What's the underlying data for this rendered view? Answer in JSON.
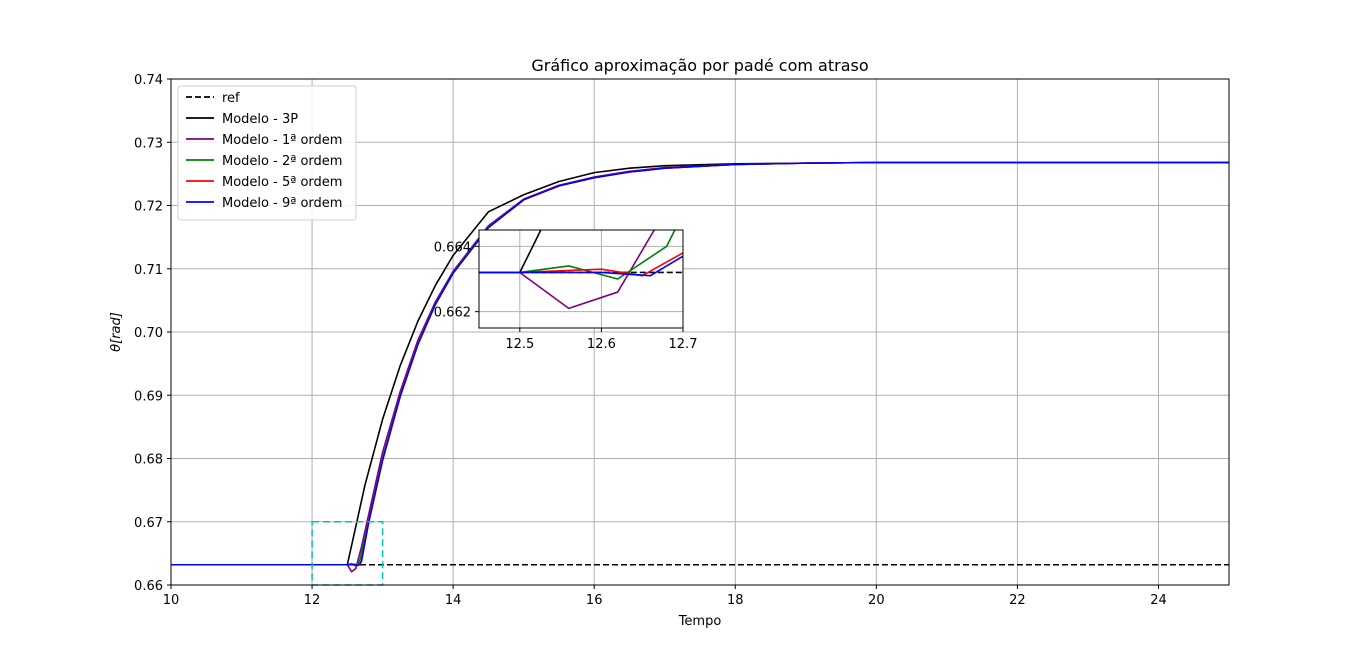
{
  "chart_data": {
    "type": "line",
    "title": "Gráfico aproximação por padé com atraso",
    "xlabel": "Tempo",
    "ylabel": "θ[rad]",
    "xlim": [
      10,
      25
    ],
    "ylim": [
      0.66,
      0.74
    ],
    "xticks": [
      "10",
      "12",
      "14",
      "16",
      "18",
      "20",
      "22",
      "24"
    ],
    "xtick_values": [
      10,
      12,
      14,
      16,
      18,
      20,
      22,
      24
    ],
    "yticks": [
      "0.66",
      "0.67",
      "0.68",
      "0.69",
      "0.70",
      "0.71",
      "0.72",
      "0.73",
      "0.74"
    ],
    "ytick_values": [
      0.66,
      0.67,
      0.68,
      0.69,
      0.7,
      0.71,
      0.72,
      0.73,
      0.74
    ],
    "grid": true,
    "legend_position": "upper-left",
    "series": [
      {
        "name": "ref",
        "color": "#000000",
        "style": "dashed",
        "x": [
          10,
          25
        ],
        "y": [
          0.6632,
          0.6632
        ]
      },
      {
        "name": "Modelo - 3P",
        "color": "#000000",
        "style": "solid",
        "x": [
          10,
          12.5,
          12.75,
          13,
          13.25,
          13.5,
          13.75,
          14,
          14.5,
          15,
          15.5,
          16,
          16.5,
          17,
          18,
          19,
          20,
          22,
          25
        ],
        "y": [
          0.6632,
          0.6632,
          0.6758,
          0.6862,
          0.6947,
          0.7017,
          0.7074,
          0.7121,
          0.719,
          0.7217,
          0.7238,
          0.7252,
          0.7259,
          0.7263,
          0.7266,
          0.7267,
          0.7268,
          0.7268,
          0.7268
        ]
      },
      {
        "name": "Modelo - 1ª ordem",
        "color": "#800080",
        "style": "solid",
        "x": [
          10,
          12.5,
          12.56,
          12.62,
          12.7,
          12.85,
          13,
          13.25,
          13.5,
          13.75,
          14,
          14.5,
          15,
          15.5,
          16,
          16.5,
          17,
          18,
          19,
          20,
          22,
          25
        ],
        "y": [
          0.6632,
          0.6632,
          0.6621,
          0.6626,
          0.666,
          0.6735,
          0.681,
          0.6906,
          0.6987,
          0.7048,
          0.7096,
          0.7168,
          0.721,
          0.7232,
          0.7245,
          0.7254,
          0.726,
          0.7265,
          0.7267,
          0.7268,
          0.7268,
          0.7268
        ]
      },
      {
        "name": "Modelo - 2ª ordem",
        "color": "#008000",
        "style": "solid",
        "x": [
          10,
          12.5,
          12.56,
          12.62,
          12.68,
          12.8,
          13,
          13.25,
          13.5,
          13.75,
          14,
          14.5,
          15,
          15.5,
          16,
          16.5,
          17,
          18,
          19,
          20,
          22,
          25
        ],
        "y": [
          0.6632,
          0.6632,
          0.6634,
          0.663,
          0.664,
          0.67,
          0.68,
          0.69,
          0.6982,
          0.7045,
          0.7094,
          0.7166,
          0.7209,
          0.7231,
          0.7244,
          0.7253,
          0.7259,
          0.7265,
          0.7267,
          0.7268,
          0.7268,
          0.7268
        ]
      },
      {
        "name": "Modelo - 5ª ordem",
        "color": "#ff0000",
        "style": "solid",
        "x": [
          10,
          12.5,
          12.6,
          12.65,
          12.7,
          12.8,
          13,
          13.25,
          13.5,
          13.75,
          14,
          14.5,
          15,
          15.5,
          16,
          16.5,
          17,
          18,
          19,
          20,
          22,
          25
        ],
        "y": [
          0.6632,
          0.6632,
          0.6633,
          0.6631,
          0.6638,
          0.6698,
          0.6798,
          0.6899,
          0.6981,
          0.7044,
          0.7093,
          0.7165,
          0.7209,
          0.7231,
          0.7244,
          0.7253,
          0.7259,
          0.7265,
          0.7267,
          0.7268,
          0.7268,
          0.7268
        ]
      },
      {
        "name": "Modelo - 9ª ordem",
        "color": "#0000ff",
        "style": "solid",
        "x": [
          10,
          12.5,
          12.6,
          12.66,
          12.7,
          12.8,
          13,
          13.25,
          13.5,
          13.75,
          14,
          14.5,
          15,
          15.5,
          16,
          16.5,
          17,
          18,
          19,
          20,
          22,
          25
        ],
        "y": [
          0.6632,
          0.6632,
          0.6632,
          0.6631,
          0.6637,
          0.6697,
          0.6797,
          0.6898,
          0.698,
          0.7044,
          0.7093,
          0.7165,
          0.7209,
          0.7231,
          0.7244,
          0.7253,
          0.7259,
          0.7265,
          0.7267,
          0.7268,
          0.7268,
          0.7268
        ]
      }
    ],
    "zoom_region": {
      "color": "#00bfbf",
      "xlim": [
        12,
        13
      ],
      "ylim": [
        0.66,
        0.67
      ]
    },
    "inset": {
      "xlim": [
        12.45,
        12.7
      ],
      "ylim": [
        0.6615,
        0.6645
      ],
      "xticks": [
        "12.5",
        "12.6",
        "12.7"
      ],
      "xtick_values": [
        12.5,
        12.6,
        12.7
      ],
      "yticks": [
        "0.662",
        "0.664"
      ],
      "ytick_values": [
        0.662,
        0.664
      ],
      "grid": true
    }
  }
}
